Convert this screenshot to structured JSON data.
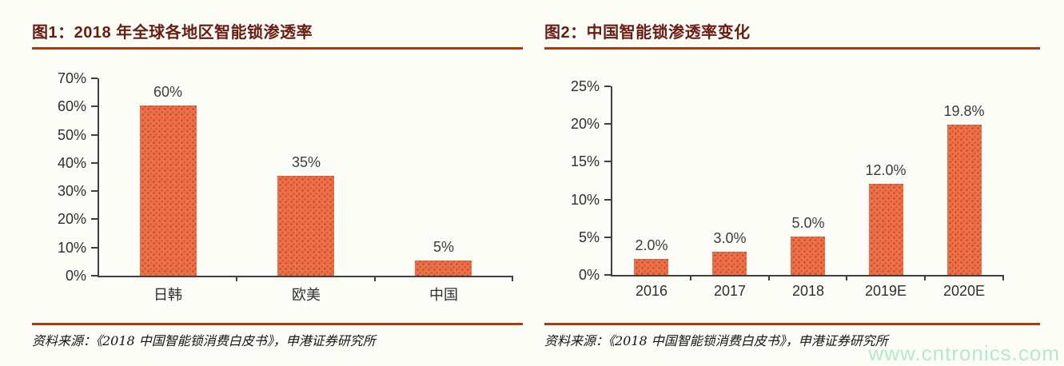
{
  "page": {
    "background": "#fdfdf8",
    "watermark": {
      "text": "www.cntronics.com",
      "color": "#b7e9c4"
    }
  },
  "figures": [
    {
      "title": "图1：2018 年全球各地区智能锁渗透率",
      "source": "资料来源：《2018 中国智能锁消费白皮书》，申港证券研究所"
    },
    {
      "title": "图2：中国智能锁渗透率变化",
      "source": "资料来源：《2018 中国智能锁消费白皮书》，申港证券研究所"
    }
  ],
  "chart_data": [
    {
      "type": "bar",
      "title": "图1：2018 年全球各地区智能锁渗透率",
      "categories": [
        "日韩",
        "欧美",
        "中国"
      ],
      "values": [
        60,
        35,
        5
      ],
      "data_labels": [
        "60%",
        "35%",
        "5%"
      ],
      "xlabel": "",
      "ylabel": "",
      "ylim": [
        0,
        70
      ],
      "ytick_step": 10,
      "ytick_labels": [
        "0%",
        "10%",
        "20%",
        "30%",
        "40%",
        "50%",
        "60%",
        "70%"
      ],
      "grid": false,
      "legend": false,
      "bar_color": "#ec7149",
      "bar_ratio": 0.41
    },
    {
      "type": "bar",
      "title": "图2：中国智能锁渗透率变化",
      "categories": [
        "2016",
        "2017",
        "2018",
        "2019E",
        "2020E"
      ],
      "values": [
        2.0,
        3.0,
        5.0,
        12.0,
        19.8
      ],
      "data_labels": [
        "2.0%",
        "3.0%",
        "5.0%",
        "12.0%",
        "19.8%"
      ],
      "xlabel": "",
      "ylabel": "",
      "ylim": [
        0,
        25
      ],
      "ytick_step": 5,
      "ytick_labels": [
        "0%",
        "5%",
        "10%",
        "15%",
        "20%",
        "25%"
      ],
      "grid": false,
      "legend": false,
      "bar_color": "#ec7149",
      "bar_ratio": 0.44
    }
  ]
}
